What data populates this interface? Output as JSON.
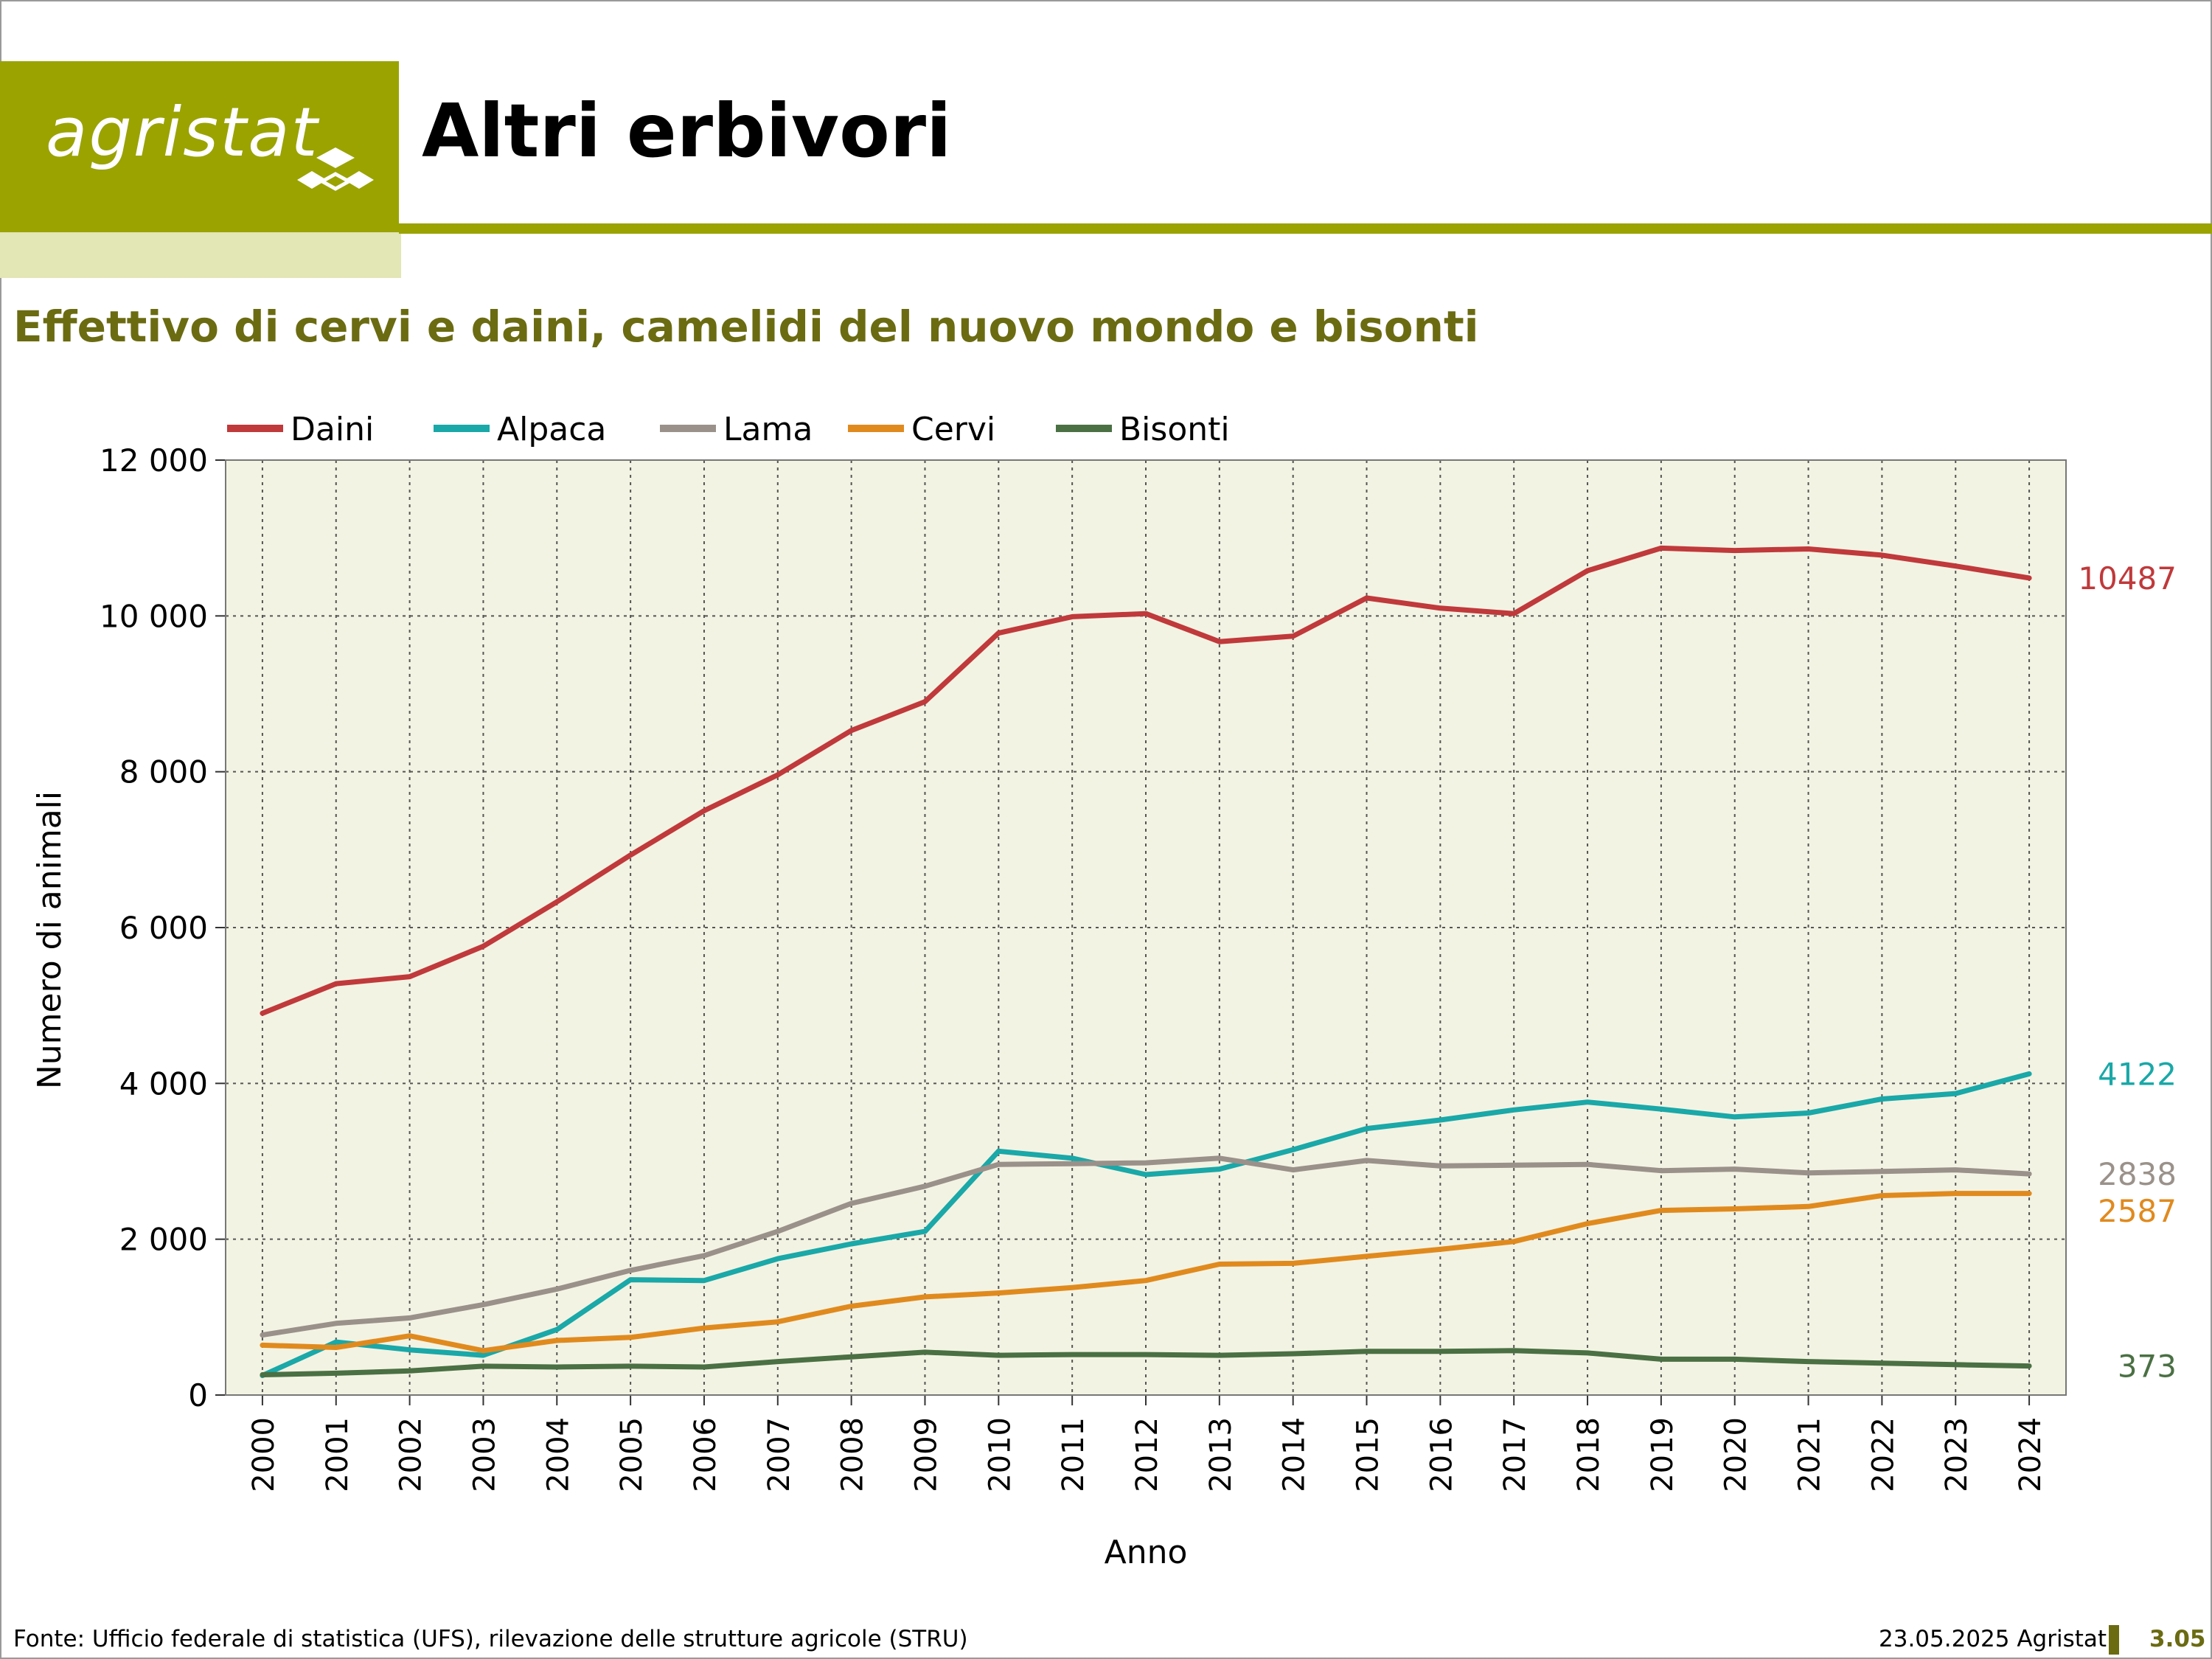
{
  "header": {
    "logo_text": "agristat",
    "title": "Altri erbivori"
  },
  "subtitle": "Effettivo di cervi e daini, camelidi del nuovo mondo e bisonti",
  "footer": {
    "source": "Fonte: Ufficio federale di statistica (UFS), rilevazione delle strutture agricole (STRU)",
    "date": "23.05.2025 Agristat",
    "page": "3.05"
  },
  "colors": {
    "brand": "#9aa300",
    "brand_light": "#e3e6b5",
    "subtitle": "#6b6b12",
    "plot_bg": "#f3f3e3"
  },
  "chart_data": {
    "type": "line",
    "xlabel": "Anno",
    "ylabel": "Numero di animali",
    "ylim": [
      0,
      12000
    ],
    "yticks": [
      0,
      2000,
      4000,
      6000,
      8000,
      10000,
      12000
    ],
    "ytick_labels": [
      "0",
      "2 000",
      "4 000",
      "6 000",
      "8 000",
      "10 000",
      "12 000"
    ],
    "grid": true,
    "legend_position": "top-left",
    "categories": [
      "2000",
      "2001",
      "2002",
      "2003",
      "2004",
      "2005",
      "2006",
      "2007",
      "2008",
      "2009",
      "2010",
      "2011",
      "2012",
      "2013",
      "2014",
      "2015",
      "2016",
      "2017",
      "2018",
      "2019",
      "2020",
      "2021",
      "2022",
      "2023",
      "2024"
    ],
    "series": [
      {
        "name": "Daini",
        "color": "#c0393b",
        "end_label": "10487",
        "values": [
          4900,
          5280,
          5370,
          5760,
          6330,
          6930,
          7500,
          7960,
          8530,
          8900,
          9780,
          9990,
          10030,
          9670,
          9740,
          10230,
          10100,
          10030,
          10580,
          10870,
          10840,
          10860,
          10780,
          10640,
          10487
        ]
      },
      {
        "name": "Alpaca",
        "color": "#1aa8a8",
        "end_label": "4122",
        "values": [
          250,
          680,
          580,
          510,
          840,
          1480,
          1470,
          1750,
          1940,
          2100,
          3130,
          3040,
          2830,
          2900,
          3150,
          3420,
          3530,
          3660,
          3760,
          3670,
          3570,
          3620,
          3800,
          3870,
          4122
        ]
      },
      {
        "name": "Lama",
        "color": "#9a918a",
        "end_label": "2838",
        "values": [
          770,
          920,
          990,
          1160,
          1360,
          1600,
          1790,
          2100,
          2460,
          2680,
          2960,
          2970,
          2980,
          3040,
          2890,
          3010,
          2940,
          2950,
          2960,
          2880,
          2900,
          2850,
          2870,
          2890,
          2838
        ]
      },
      {
        "name": "Cervi",
        "color": "#e08a1e",
        "end_label": "2587",
        "values": [
          640,
          610,
          760,
          570,
          700,
          740,
          860,
          940,
          1140,
          1260,
          1310,
          1380,
          1470,
          1680,
          1690,
          1780,
          1870,
          1970,
          2200,
          2370,
          2390,
          2420,
          2560,
          2587,
          2587
        ]
      },
      {
        "name": "Bisonti",
        "color": "#4a7043",
        "end_label": "373",
        "values": [
          260,
          280,
          310,
          370,
          360,
          370,
          360,
          430,
          490,
          550,
          510,
          520,
          520,
          510,
          530,
          560,
          560,
          570,
          540,
          460,
          460,
          430,
          410,
          390,
          373
        ]
      }
    ]
  }
}
